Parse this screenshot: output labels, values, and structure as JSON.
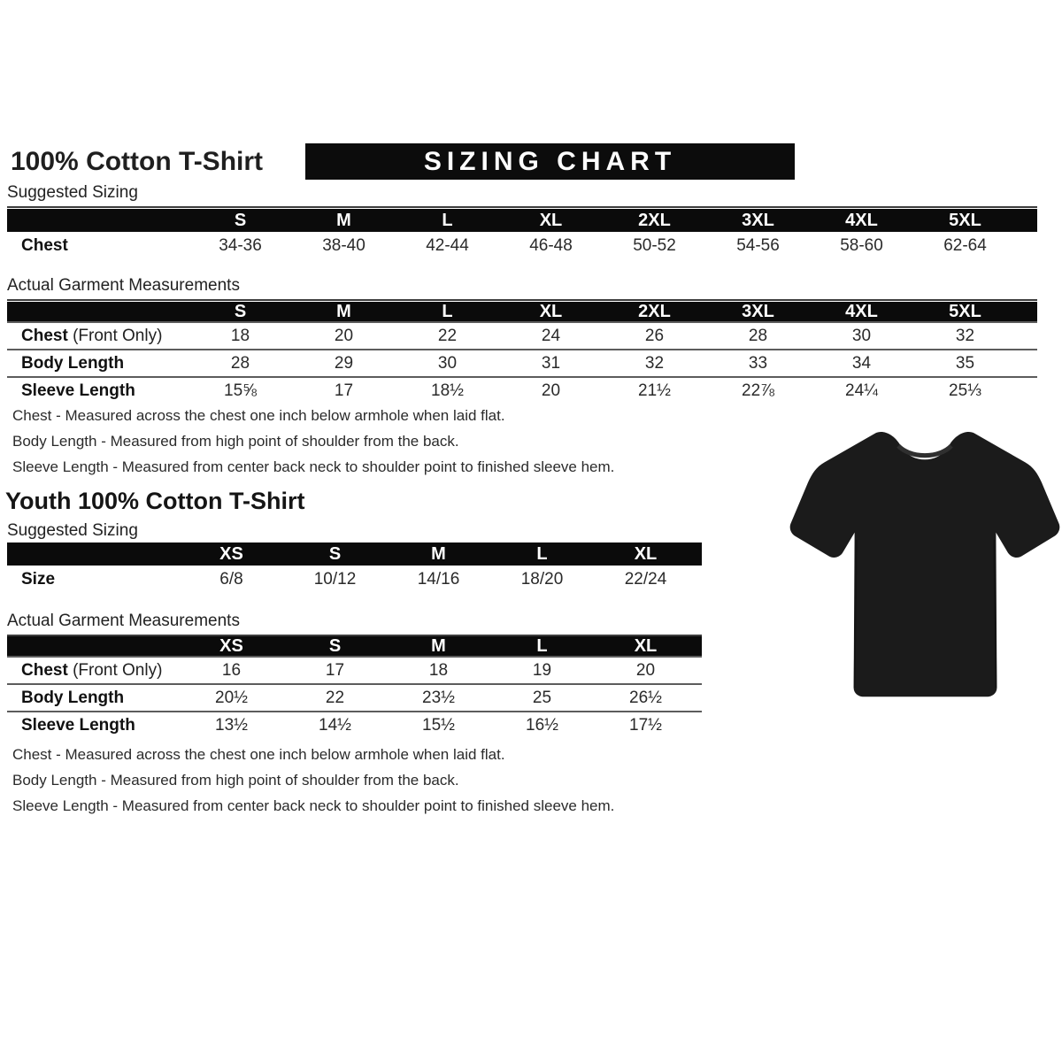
{
  "banner": "SIZING CHART",
  "adult": {
    "title": "100% Cotton T-Shirt",
    "suggested": {
      "label": "Suggested Sizing",
      "columns": [
        "S",
        "M",
        "L",
        "XL",
        "2XL",
        "3XL",
        "4XL",
        "5XL"
      ],
      "rows": [
        {
          "label": "Chest",
          "suffix": "",
          "values": [
            "34-36",
            "38-40",
            "42-44",
            "46-48",
            "50-52",
            "54-56",
            "58-60",
            "62-64"
          ]
        }
      ]
    },
    "actual": {
      "label": "Actual Garment Measurements",
      "columns": [
        "S",
        "M",
        "L",
        "XL",
        "2XL",
        "3XL",
        "4XL",
        "5XL"
      ],
      "rows": [
        {
          "label": "Chest",
          "suffix": " (Front Only)",
          "values": [
            "18",
            "20",
            "22",
            "24",
            "26",
            "28",
            "30",
            "32"
          ]
        },
        {
          "label": "Body Length",
          "suffix": "",
          "values": [
            "28",
            "29",
            "30",
            "31",
            "32",
            "33",
            "34",
            "35"
          ]
        },
        {
          "label": "Sleeve Length",
          "suffix": "",
          "values": [
            "15⅝",
            "17",
            "18½",
            "20",
            "21½",
            "22⅞",
            "24¼",
            "25⅓"
          ]
        }
      ]
    },
    "notes": [
      "Chest - Measured across the chest one inch below armhole when laid flat.",
      "Body Length - Measured from high point of shoulder from the back.",
      "Sleeve Length - Measured from center back neck to shoulder point to finished sleeve hem."
    ]
  },
  "youth": {
    "title": "Youth 100% Cotton T-Shirt",
    "suggested": {
      "label": "Suggested Sizing",
      "columns": [
        "XS",
        "S",
        "M",
        "L",
        "XL"
      ],
      "rows": [
        {
          "label": "Size",
          "suffix": "",
          "values": [
            "6/8",
            "10/12",
            "14/16",
            "18/20",
            "22/24"
          ]
        }
      ]
    },
    "actual": {
      "label": "Actual Garment Measurements",
      "columns": [
        "XS",
        "S",
        "M",
        "L",
        "XL"
      ],
      "rows": [
        {
          "label": "Chest",
          "suffix": " (Front Only)",
          "values": [
            "16",
            "17",
            "18",
            "19",
            "20"
          ]
        },
        {
          "label": "Body Length",
          "suffix": "",
          "values": [
            "20½",
            "22",
            "23½",
            "25",
            "26½"
          ]
        },
        {
          "label": "Sleeve Length",
          "suffix": "",
          "values": [
            "13½",
            "14½",
            "15½",
            "16½",
            "17½"
          ]
        }
      ]
    },
    "notes": [
      "Chest - Measured across the chest one inch below armhole when laid flat.",
      "Body Length - Measured from high point of shoulder from the back.",
      "Sleeve Length - Measured from center back neck to shoulder point to finished sleeve hem."
    ]
  },
  "tshirt": {
    "color": "#1b1b1b",
    "collar_color": "#2f2f2f",
    "name": "black t-shirt product photo"
  }
}
